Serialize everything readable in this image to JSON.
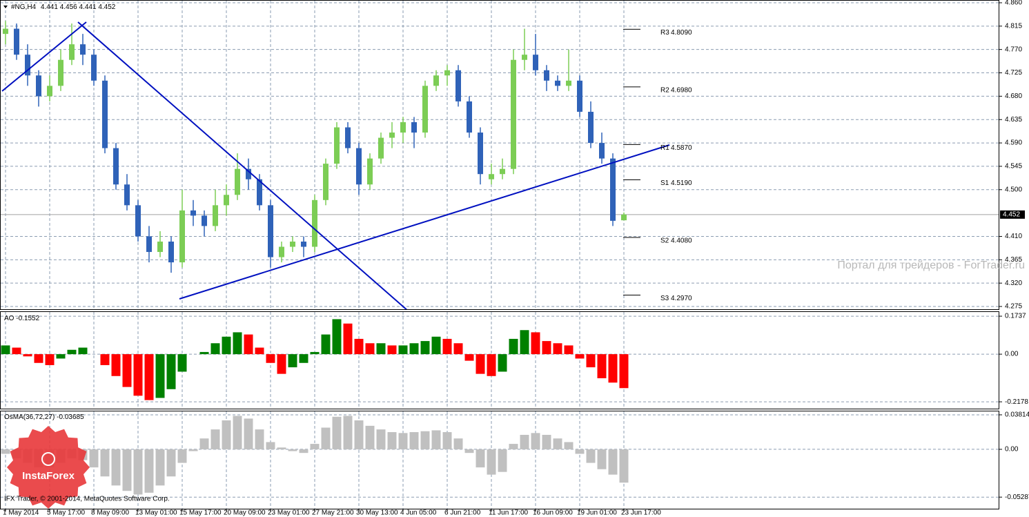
{
  "chart_data": [
    {
      "type": "candlestick",
      "symbol": "#NG,H4",
      "header_values": [
        4.441,
        4.456,
        4.441,
        4.452
      ],
      "categories": [
        "1 May 2014",
        null,
        null,
        null,
        "5 May 17:00",
        null,
        null,
        null,
        "8 May 09:00",
        null,
        null,
        null,
        "13 May 01:00",
        null,
        null,
        null,
        "15 May 17:00",
        null,
        null,
        null,
        "20 May 09:00",
        null,
        null,
        null,
        "23 May 01:00",
        null,
        null,
        null,
        "27 May 21:00",
        null,
        null,
        null,
        "30 May 13:00",
        null,
        null,
        null,
        "4 Jun 05:00",
        null,
        null,
        null,
        "6 Jun 21:00",
        null,
        null,
        null,
        "11 Jun 17:00",
        null,
        null,
        null,
        "16 Jun 09:00",
        null,
        null,
        null,
        "19 Jun 01:00",
        null,
        null,
        null,
        "23 Jun 17:00"
      ],
      "open": [
        4.8,
        4.81,
        4.76,
        4.72,
        4.68,
        4.7,
        4.75,
        4.78,
        4.76,
        4.71,
        4.58,
        4.51,
        4.47,
        4.41,
        4.38,
        4.4,
        4.36,
        4.46,
        4.45,
        4.43,
        4.47,
        4.49,
        4.54,
        4.52,
        4.47,
        4.37,
        4.39,
        4.4,
        4.39,
        4.48,
        4.55,
        4.62,
        4.58,
        4.51,
        4.56,
        4.6,
        4.61,
        4.63,
        4.61,
        4.7,
        4.72,
        4.73,
        4.67,
        4.61,
        4.52,
        4.53,
        4.54,
        4.75,
        4.76,
        4.73,
        4.71,
        4.7,
        4.71,
        4.65,
        4.59,
        4.56,
        4.441
      ],
      "high": [
        4.825,
        4.82,
        4.78,
        4.73,
        4.72,
        4.77,
        4.82,
        4.8,
        4.77,
        4.72,
        4.59,
        4.53,
        4.48,
        4.43,
        4.42,
        4.41,
        4.5,
        4.48,
        4.46,
        4.5,
        4.51,
        4.57,
        4.56,
        4.53,
        4.48,
        4.4,
        4.41,
        4.41,
        4.49,
        4.56,
        4.63,
        4.63,
        4.59,
        4.57,
        4.61,
        4.63,
        4.64,
        4.64,
        4.71,
        4.73,
        4.74,
        4.74,
        4.68,
        4.62,
        4.55,
        4.56,
        4.77,
        4.81,
        4.8,
        4.74,
        4.72,
        4.77,
        4.72,
        4.67,
        4.61,
        4.57,
        4.456
      ],
      "low": [
        4.78,
        4.75,
        4.7,
        4.66,
        4.67,
        4.69,
        4.74,
        4.74,
        4.7,
        4.57,
        4.5,
        4.46,
        4.4,
        4.36,
        4.37,
        4.34,
        4.35,
        4.43,
        4.41,
        4.42,
        4.45,
        4.48,
        4.5,
        4.46,
        4.35,
        4.36,
        4.38,
        4.37,
        4.38,
        4.47,
        4.54,
        4.57,
        4.49,
        4.5,
        4.55,
        4.58,
        4.59,
        4.58,
        4.6,
        4.69,
        4.7,
        4.66,
        4.6,
        4.51,
        4.51,
        4.52,
        4.53,
        4.73,
        4.72,
        4.69,
        4.69,
        4.69,
        4.64,
        4.58,
        4.55,
        4.43,
        4.441
      ],
      "close": [
        4.81,
        4.76,
        4.72,
        4.68,
        4.7,
        4.75,
        4.78,
        4.76,
        4.71,
        4.58,
        4.51,
        4.47,
        4.41,
        4.38,
        4.4,
        4.36,
        4.46,
        4.45,
        4.43,
        4.47,
        4.49,
        4.54,
        4.52,
        4.47,
        4.37,
        4.39,
        4.4,
        4.39,
        4.48,
        4.55,
        4.62,
        4.58,
        4.51,
        4.56,
        4.6,
        4.61,
        4.63,
        4.61,
        4.7,
        4.72,
        4.73,
        4.67,
        4.61,
        4.53,
        4.53,
        4.54,
        4.75,
        4.76,
        4.73,
        4.71,
        4.7,
        4.71,
        4.65,
        4.59,
        4.56,
        4.44,
        4.452
      ],
      "up_color": "#7ccd55",
      "down_color": "#2f62b8",
      "ylim": [
        4.2697,
        4.8653
      ],
      "yticks": [
        {
          "value": 4.86,
          "label": "4.860"
        },
        4.815,
        {
          "value": 4.77,
          "label": "4.770"
        },
        4.725,
        {
          "value": 4.68,
          "label": "4.680"
        },
        4.635,
        {
          "value": 4.59,
          "label": "4.590"
        },
        4.545,
        {
          "value": 4.5,
          "label": "4.500"
        },
        {
          "value": 4.41,
          "label": "4.410"
        },
        4.365,
        {
          "value": 4.32,
          "label": "4.320"
        },
        4.275
      ],
      "grid": true,
      "last_price": 4.452,
      "pivots": {
        "names": [
          "R3",
          "R2",
          "R1",
          "S1",
          "S2",
          "S3"
        ],
        "values": [
          4.809,
          4.698,
          4.587,
          4.519,
          4.408,
          4.297
        ],
        "value_labels": [
          "4.8090",
          "4.6980",
          "4.5870",
          "4.5190",
          "4.4080",
          "4.2970"
        ]
      }
    },
    {
      "type": "bar",
      "name": "AO",
      "values": [
        0.04,
        0.03,
        -0.01,
        -0.04,
        -0.05,
        -0.02,
        0.02,
        0.03,
        0.0,
        -0.05,
        -0.1,
        -0.15,
        -0.19,
        -0.21,
        -0.2,
        -0.16,
        -0.08,
        0.0,
        0.01,
        0.05,
        0.08,
        0.1,
        0.09,
        0.03,
        -0.04,
        -0.09,
        -0.06,
        -0.04,
        0.01,
        0.09,
        0.16,
        0.14,
        0.07,
        0.05,
        0.05,
        0.04,
        0.04,
        0.05,
        0.06,
        0.08,
        0.07,
        0.05,
        -0.03,
        -0.09,
        -0.1,
        -0.08,
        0.07,
        0.11,
        0.1,
        0.06,
        0.05,
        0.04,
        -0.02,
        -0.06,
        -0.11,
        -0.13,
        -0.1552
      ],
      "up_color": "#008000",
      "down_color": "#ff0000",
      "ylim": [
        -0.249,
        0.196
      ],
      "yticks": [
        0.1737,
        {
          "value": 0,
          "label": "0.00"
        },
        -0.2178
      ],
      "grid": true
    },
    {
      "type": "bar",
      "name": "OsMA(36,72,27)",
      "values": [
        -0.005,
        -0.01,
        -0.015,
        -0.02,
        -0.02,
        -0.015,
        -0.01,
        -0.012,
        -0.02,
        -0.03,
        -0.04,
        -0.046,
        -0.05,
        -0.048,
        -0.04,
        -0.03,
        -0.015,
        -0.002,
        0.012,
        0.022,
        0.032,
        0.037,
        0.034,
        0.022,
        0.008,
        0.002,
        -0.002,
        -0.004,
        0.006,
        0.024,
        0.036,
        0.037,
        0.032,
        0.026,
        0.022,
        0.019,
        0.018,
        0.019,
        0.02,
        0.021,
        0.019,
        0.012,
        -0.004,
        -0.02,
        -0.028,
        -0.025,
        0.006,
        0.016,
        0.018,
        0.016,
        0.012,
        0.008,
        -0.005,
        -0.015,
        -0.022,
        -0.028,
        -0.03685
      ],
      "color": "#c0c0c0",
      "ylim": [
        -0.0657,
        0.0427
      ],
      "yticks": [
        0.03814,
        {
          "value": 0,
          "label": "0.00"
        },
        -0.05287
      ],
      "grid": true
    }
  ],
  "watermark": "Портал для трейдеров - ForTrader.ru",
  "copyright": "IFX Trader, © 2001-2014, MetaQuotes Software Corp.",
  "logo": "InstaForex"
}
